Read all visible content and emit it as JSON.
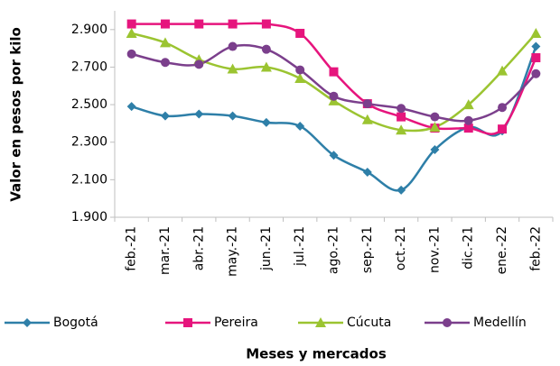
{
  "chart_data": {
    "type": "line",
    "y_label": "Valor en pesos por kilo",
    "x_label": "Meses  y mercados",
    "categories": [
      "feb.-21",
      "mar.-21",
      "abr.-21",
      "may.-21",
      "jun.-21",
      "jul.-21",
      "ago.-21",
      "sep.-21",
      "oct.-21",
      "nov.-21",
      "dic.-21",
      "ene.-22",
      "feb.-22"
    ],
    "series": [
      {
        "name": "Bogotá",
        "color": "#2e7fa8",
        "marker": "diamond",
        "values": [
          2490,
          2440,
          2450,
          2440,
          2405,
          2385,
          2230,
          2140,
          2045,
          2260,
          2380,
          2360,
          2810
        ]
      },
      {
        "name": "Pereira",
        "color": "#e6157d",
        "marker": "square",
        "values": [
          2930,
          2930,
          2930,
          2930,
          2930,
          2880,
          2675,
          2505,
          2435,
          2375,
          2375,
          2370,
          2750
        ]
      },
      {
        "name": "Cúcuta",
        "color": "#9bc431",
        "marker": "triangle",
        "values": [
          2880,
          2830,
          2740,
          2690,
          2700,
          2640,
          2520,
          2420,
          2365,
          2380,
          2500,
          2680,
          2880
        ]
      },
      {
        "name": "Medellín",
        "color": "#7b3f8c",
        "marker": "circle",
        "values": [
          2770,
          2725,
          2715,
          2810,
          2795,
          2685,
          2545,
          2505,
          2480,
          2435,
          2415,
          2485,
          2665
        ]
      }
    ],
    "ylim": [
      1900,
      3000
    ],
    "yticks": [
      {
        "value": 1900,
        "label": "1.900"
      },
      {
        "value": 2100,
        "label": "2.100"
      },
      {
        "value": 2300,
        "label": "2.300"
      },
      {
        "value": 2500,
        "label": "2.500"
      },
      {
        "value": 2700,
        "label": "2.700"
      },
      {
        "value": 2900,
        "label": "2.900"
      }
    ],
    "smooth": true,
    "legend": "bottom"
  }
}
